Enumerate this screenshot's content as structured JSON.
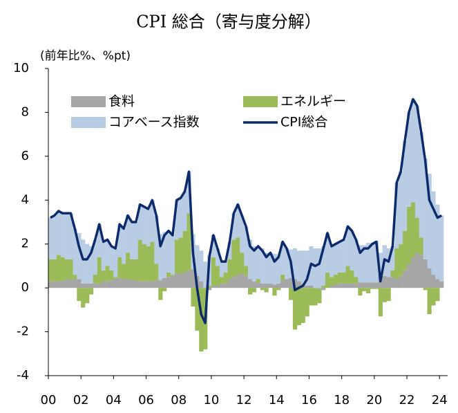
{
  "chart_data": {
    "type": "bar",
    "title": "CPI 総合（寄与度分解）",
    "y_label": "(前年比%、%pt)",
    "x": [
      2000,
      2000.25,
      2000.5,
      2000.75,
      2001,
      2001.25,
      2001.5,
      2001.75,
      2002,
      2002.25,
      2002.5,
      2002.75,
      2003,
      2003.25,
      2003.5,
      2003.75,
      2004,
      2004.25,
      2004.5,
      2004.75,
      2005,
      2005.25,
      2005.5,
      2005.75,
      2006,
      2006.25,
      2006.5,
      2006.75,
      2007,
      2007.25,
      2007.5,
      2007.75,
      2008,
      2008.25,
      2008.5,
      2008.75,
      2009,
      2009.25,
      2009.5,
      2009.75,
      2010,
      2010.25,
      2010.5,
      2010.75,
      2011,
      2011.25,
      2011.5,
      2011.75,
      2012,
      2012.25,
      2012.5,
      2012.75,
      2013,
      2013.25,
      2013.5,
      2013.75,
      2014,
      2014.25,
      2014.5,
      2014.75,
      2015,
      2015.25,
      2015.5,
      2015.75,
      2016,
      2016.25,
      2016.5,
      2016.75,
      2017,
      2017.25,
      2017.5,
      2017.75,
      2018,
      2018.25,
      2018.5,
      2018.75,
      2019,
      2019.25,
      2019.5,
      2019.75,
      2020,
      2020.25,
      2020.5,
      2020.75,
      2021,
      2021.25,
      2021.5,
      2021.75,
      2022,
      2022.25,
      2022.5,
      2022.75,
      2023,
      2023.25,
      2023.5,
      2023.75,
      2024
    ],
    "xlim": [
      2000,
      2024.5
    ],
    "xticks": [
      {
        "value": 2000,
        "label": "00"
      },
      {
        "value": 2002,
        "label": "02"
      },
      {
        "value": 2004,
        "label": "04"
      },
      {
        "value": 2006,
        "label": "06"
      },
      {
        "value": 2008,
        "label": "08"
      },
      {
        "value": 2010,
        "label": "10"
      },
      {
        "value": 2012,
        "label": "12"
      },
      {
        "value": 2014,
        "label": "14"
      },
      {
        "value": 2016,
        "label": "16"
      },
      {
        "value": 2018,
        "label": "18"
      },
      {
        "value": 2020,
        "label": "20"
      },
      {
        "value": 2022,
        "label": "22"
      },
      {
        "value": 2024,
        "label": "24"
      }
    ],
    "ylim": [
      -4,
      10
    ],
    "yticks": [
      -4,
      -2,
      0,
      2,
      4,
      6,
      8,
      10
    ],
    "series": [
      {
        "name": "食料",
        "type": "bar",
        "color": "#a6a6a6",
        "values": [
          0.3,
          0.3,
          0.3,
          0.3,
          0.4,
          0.4,
          0.4,
          0.4,
          0.2,
          0.2,
          0.2,
          0.2,
          0.2,
          0.3,
          0.3,
          0.35,
          0.45,
          0.45,
          0.4,
          0.4,
          0.35,
          0.35,
          0.3,
          0.3,
          0.3,
          0.3,
          0.35,
          0.35,
          0.45,
          0.5,
          0.55,
          0.65,
          0.65,
          0.7,
          0.8,
          0.85,
          0.55,
          0.3,
          0.0,
          -0.1,
          0.1,
          0.1,
          0.2,
          0.2,
          0.4,
          0.5,
          0.6,
          0.65,
          0.55,
          0.4,
          0.3,
          0.25,
          0.2,
          0.2,
          0.2,
          0.15,
          0.2,
          0.35,
          0.4,
          0.45,
          0.4,
          0.3,
          0.2,
          0.1,
          0.1,
          0.0,
          -0.05,
          -0.1,
          0.0,
          0.1,
          0.15,
          0.2,
          0.2,
          0.2,
          0.2,
          0.2,
          0.25,
          0.25,
          0.25,
          0.25,
          0.25,
          0.6,
          0.55,
          0.5,
          0.5,
          0.4,
          0.55,
          0.8,
          1.1,
          1.4,
          1.6,
          1.5,
          1.3,
          0.9,
          0.6,
          0.4,
          0.3
        ]
      },
      {
        "name": "エネルギー",
        "type": "bar",
        "color": "#9bbb59",
        "values": [
          1.0,
          1.0,
          1.2,
          1.1,
          0.9,
          0.9,
          0.2,
          -0.6,
          -0.9,
          -0.7,
          -0.3,
          0.4,
          1.2,
          0.5,
          0.7,
          0.45,
          0.05,
          0.95,
          0.7,
          1.2,
          0.95,
          0.95,
          1.9,
          1.7,
          1.6,
          1.8,
          0.75,
          -0.55,
          -0.15,
          0.2,
          0.05,
          1.55,
          1.65,
          1.9,
          2.6,
          -0.85,
          -1.95,
          -2.9,
          -2.8,
          0.1,
          1.3,
          0.9,
          0.3,
          0.5,
          0.9,
          1.7,
          1.7,
          0.95,
          0.45,
          -0.3,
          -0.2,
          0.15,
          -0.1,
          -0.2,
          0.0,
          -0.35,
          -0.1,
          0.25,
          0.0,
          -0.55,
          -1.9,
          -1.7,
          -1.6,
          -1.3,
          -0.8,
          -0.8,
          -0.65,
          0.1,
          0.7,
          0.4,
          0.45,
          0.5,
          0.5,
          0.8,
          0.6,
          0.3,
          -0.35,
          -0.15,
          -0.25,
          -0.05,
          -0.05,
          -1.3,
          -0.65,
          -0.6,
          0.3,
          1.4,
          1.45,
          1.8,
          2.6,
          2.5,
          1.6,
          0.8,
          -0.1,
          -1.2,
          -0.8,
          -0.6,
          0.0
        ]
      },
      {
        "name": "コアベース指数",
        "type": "bar",
        "color": "#b8cce4",
        "values": [
          1.9,
          2.0,
          2.0,
          2.0,
          2.1,
          2.1,
          2.1,
          2.1,
          2.0,
          1.8,
          1.7,
          1.6,
          1.5,
          1.3,
          1.2,
          1.1,
          1.3,
          1.5,
          1.6,
          1.7,
          1.7,
          1.7,
          1.6,
          1.7,
          1.7,
          1.9,
          2.2,
          2.1,
          2.1,
          1.9,
          1.8,
          1.8,
          1.8,
          1.8,
          1.9,
          1.6,
          1.4,
          1.4,
          1.2,
          1.4,
          1.0,
          0.8,
          0.7,
          0.5,
          0.8,
          1.2,
          1.5,
          1.7,
          1.8,
          1.8,
          1.6,
          1.5,
          1.6,
          1.4,
          1.4,
          1.4,
          1.3,
          1.5,
          1.4,
          1.3,
          1.4,
          1.4,
          1.5,
          1.6,
          1.8,
          1.8,
          1.8,
          1.8,
          1.8,
          1.4,
          1.4,
          1.4,
          1.5,
          1.8,
          1.8,
          1.7,
          1.7,
          1.7,
          1.8,
          1.8,
          1.9,
          1.0,
          1.4,
          1.3,
          1.1,
          3.0,
          3.3,
          4.1,
          4.3,
          4.7,
          5.1,
          4.8,
          4.6,
          4.3,
          3.8,
          3.4,
          3.0
        ]
      },
      {
        "name": "CPI総合",
        "type": "line",
        "color": "#0d2a6b",
        "values": [
          3.2,
          3.3,
          3.5,
          3.4,
          3.4,
          3.4,
          2.7,
          1.9,
          1.3,
          1.3,
          1.6,
          2.2,
          2.9,
          2.1,
          2.2,
          1.9,
          1.8,
          2.9,
          2.7,
          3.3,
          3.0,
          3.0,
          3.8,
          3.7,
          3.6,
          4.0,
          3.3,
          1.9,
          2.4,
          2.6,
          2.4,
          4.0,
          4.1,
          4.4,
          5.3,
          1.6,
          0.0,
          -1.2,
          -1.6,
          1.4,
          2.4,
          1.8,
          1.2,
          1.2,
          2.1,
          3.4,
          3.8,
          3.3,
          2.8,
          1.9,
          1.7,
          1.9,
          1.7,
          1.4,
          1.6,
          1.2,
          1.4,
          2.1,
          1.8,
          1.2,
          -0.1,
          0.0,
          0.1,
          0.4,
          1.1,
          1.0,
          1.1,
          1.8,
          2.5,
          1.9,
          2.0,
          2.1,
          2.2,
          2.8,
          2.6,
          2.2,
          1.6,
          1.8,
          1.8,
          2.0,
          2.1,
          0.3,
          1.3,
          1.2,
          1.9,
          4.8,
          5.3,
          6.7,
          8.0,
          8.6,
          8.3,
          7.1,
          5.8,
          4.0,
          3.6,
          3.2,
          3.3
        ]
      }
    ]
  }
}
